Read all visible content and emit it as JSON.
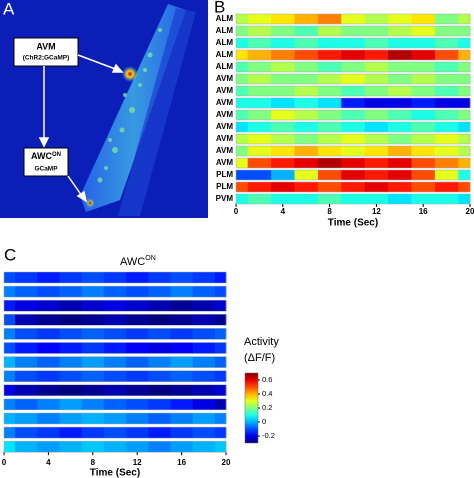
{
  "panel_a": {
    "letter": "A",
    "avm_label": "AVM",
    "avm_sub": "(ChR2;GCaMP)",
    "awc_label": "AWC",
    "awc_sup": "ON",
    "awc_sub": "GCaMP"
  },
  "chart_data": [
    {
      "type": "heatmap",
      "letter": "B",
      "rows": [
        "ALM",
        "ALM",
        "ALM",
        "ALM",
        "ALM",
        "AVM",
        "AVM",
        "AVM",
        "AVM",
        "AVM",
        "AVM",
        "AVM",
        "AVM",
        "PLM",
        "PLM",
        "PVM"
      ],
      "x": [
        0,
        2,
        4,
        6,
        8,
        10,
        12,
        14,
        16,
        18,
        20
      ],
      "values": [
        [
          0.25,
          0.3,
          0.35,
          0.4,
          0.45,
          0.3,
          0.25,
          0.3,
          0.35,
          0.2,
          0.25
        ],
        [
          0.2,
          0.25,
          0.2,
          0.15,
          0.25,
          0.2,
          0.2,
          0.25,
          0.3,
          0.2,
          0.2
        ],
        [
          0.1,
          0.15,
          0.1,
          0.15,
          0.1,
          0.1,
          0.15,
          0.1,
          0.1,
          0.15,
          0.1
        ],
        [
          0.35,
          0.4,
          0.45,
          0.5,
          0.55,
          0.6,
          0.55,
          0.65,
          0.6,
          0.5,
          0.4
        ],
        [
          0.15,
          0.2,
          0.25,
          0.2,
          0.15,
          0.2,
          0.25,
          0.2,
          0.2,
          0.15,
          0.2
        ],
        [
          0.2,
          0.25,
          0.2,
          0.2,
          0.25,
          0.3,
          0.25,
          0.2,
          0.25,
          0.2,
          0.2
        ],
        [
          0.15,
          0.2,
          0.2,
          0.25,
          0.2,
          0.15,
          0.2,
          0.25,
          0.2,
          0.15,
          0.2
        ],
        [
          0.1,
          0.1,
          0.05,
          0.1,
          0.05,
          -0.15,
          -0.2,
          -0.2,
          -0.15,
          -0.2,
          -0.2
        ],
        [
          0.15,
          0.2,
          0.3,
          0.25,
          0.2,
          0.15,
          0.2,
          0.15,
          0.1,
          0.15,
          0.2
        ],
        [
          0.05,
          0.1,
          0.15,
          0.1,
          0.15,
          0.1,
          0.05,
          0.1,
          0.15,
          0.1,
          0.05
        ],
        [
          0.25,
          0.3,
          0.25,
          0.2,
          0.25,
          0.3,
          0.25,
          0.2,
          0.25,
          0.3,
          0.25
        ],
        [
          0.2,
          0.3,
          0.35,
          0.4,
          0.35,
          0.3,
          0.35,
          0.4,
          0.35,
          0.3,
          0.25
        ],
        [
          0.3,
          0.5,
          0.55,
          0.6,
          0.65,
          0.6,
          0.55,
          0.6,
          0.5,
          0.45,
          0.4
        ],
        [
          -0.1,
          -0.1,
          0,
          0.3,
          0.5,
          0.6,
          0.55,
          0.6,
          0.5,
          0.3,
          0.1
        ],
        [
          0.5,
          0.55,
          0.6,
          0.55,
          0.5,
          0.55,
          0.6,
          0.55,
          0.5,
          0.55,
          0.5
        ],
        [
          0.1,
          0.15,
          0.1,
          0.1,
          0.15,
          0.1,
          0.1,
          0.05,
          0.1,
          0.1,
          0.05
        ]
      ],
      "xlim": [
        0,
        20
      ],
      "xticks": [
        0,
        4,
        8,
        12,
        16,
        20
      ],
      "xlabel": "Time (Sec)"
    },
    {
      "type": "heatmap",
      "letter": "C",
      "title": "AWC",
      "title_sup": "ON",
      "x": [
        0,
        2,
        4,
        6,
        8,
        10,
        12,
        14,
        16,
        18,
        20
      ],
      "values": [
        [
          -0.1,
          -0.12,
          -0.15,
          -0.12,
          -0.1,
          -0.12,
          -0.15,
          -0.12,
          -0.1,
          -0.12,
          -0.15
        ],
        [
          -0.05,
          -0.08,
          -0.1,
          -0.08,
          -0.05,
          -0.08,
          -0.1,
          -0.08,
          -0.05,
          -0.08,
          -0.1
        ],
        [
          -0.15,
          -0.2,
          -0.22,
          -0.25,
          -0.22,
          -0.2,
          -0.22,
          -0.25,
          -0.28,
          -0.25,
          -0.22
        ],
        [
          -0.1,
          -0.25,
          -0.28,
          -0.3,
          -0.28,
          -0.25,
          -0.28,
          -0.3,
          -0.28,
          -0.25,
          -0.28
        ],
        [
          -0.05,
          -0.1,
          -0.12,
          -0.1,
          -0.08,
          -0.1,
          -0.12,
          -0.1,
          -0.12,
          -0.1,
          -0.08
        ],
        [
          -0.1,
          -0.15,
          -0.18,
          -0.15,
          -0.12,
          -0.15,
          -0.18,
          -0.2,
          -0.18,
          -0.15,
          -0.12
        ],
        [
          0,
          -0.05,
          -0.08,
          -0.05,
          -0.02,
          -0.05,
          -0.08,
          -0.05,
          -0.02,
          -0.05,
          -0.08
        ],
        [
          -0.05,
          -0.1,
          -0.12,
          -0.1,
          -0.08,
          -0.1,
          -0.12,
          -0.1,
          -0.08,
          -0.1,
          -0.12
        ],
        [
          -0.2,
          -0.25,
          -0.28,
          -0.3,
          -0.28,
          -0.25,
          -0.28,
          -0.3,
          -0.28,
          -0.25,
          -0.22
        ],
        [
          -0.05,
          -0.08,
          -0.05,
          -0.02,
          -0.05,
          -0.08,
          -0.1,
          -0.12,
          -0.15,
          -0.2,
          -0.25
        ],
        [
          0,
          -0.02,
          -0.05,
          -0.02,
          0,
          -0.02,
          -0.05,
          -0.08,
          -0.05,
          -0.02,
          -0.05
        ],
        [
          -0.05,
          -0.1,
          -0.12,
          -0.15,
          -0.12,
          -0.1,
          -0.12,
          -0.15,
          -0.12,
          -0.1,
          -0.12
        ],
        [
          0.05,
          0,
          -0.02,
          0,
          0.02,
          0,
          -0.02,
          -0.05,
          -0.02,
          0,
          0.02
        ]
      ],
      "xlim": [
        0,
        20
      ],
      "xticks": [
        0,
        4,
        8,
        12,
        16,
        20
      ],
      "xlabel": "Time (Sec)"
    },
    {
      "type": "colorbar",
      "title": "Activity",
      "subtitle": "(ΔF/F)",
      "clim": [
        -0.3,
        0.7
      ],
      "ticks": [
        0.6,
        0.4,
        0.2,
        0,
        -0.2
      ]
    }
  ]
}
